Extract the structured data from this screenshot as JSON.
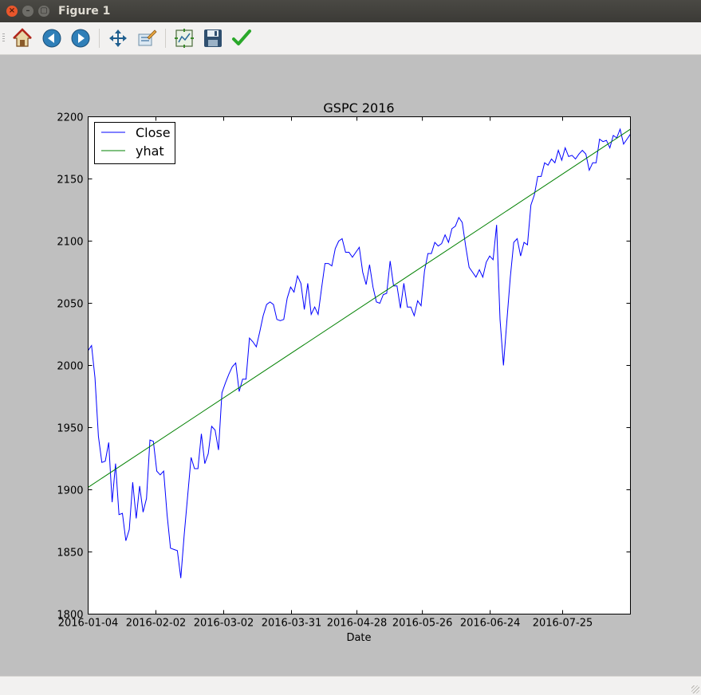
{
  "window": {
    "title": "Figure 1",
    "close_glyph": "×",
    "min_glyph": "–",
    "max_glyph": "▢"
  },
  "toolbar": {
    "items": [
      {
        "name": "home-icon"
      },
      {
        "name": "back-icon"
      },
      {
        "name": "forward-icon"
      },
      {
        "name": "pan-icon"
      },
      {
        "name": "zoom-icon"
      },
      {
        "name": "subplots-icon"
      },
      {
        "name": "save-icon"
      },
      {
        "name": "edit-axis-icon"
      }
    ]
  },
  "chart_data": {
    "type": "line",
    "title": "GSPC 2016",
    "xlabel": "Date",
    "ylabel": "",
    "ylim": [
      1800,
      2200
    ],
    "yticks": [
      1800,
      1850,
      1900,
      1950,
      2000,
      2050,
      2100,
      2150,
      2200
    ],
    "xticks": [
      "2016-01-04",
      "2016-02-02",
      "2016-03-02",
      "2016-03-31",
      "2016-04-28",
      "2016-05-26",
      "2016-06-24",
      "2016-07-25"
    ],
    "legend_position": "upper-left",
    "colors": {
      "Close": "#0000ff",
      "yhat": "#008000"
    },
    "series": [
      {
        "name": "Close",
        "x_start": "2016-01-04",
        "x_end": "2016-08-23",
        "values": [
          2012,
          2016,
          1990,
          1943,
          1922,
          1923,
          1938,
          1890,
          1921,
          1880,
          1881,
          1859,
          1868,
          1906,
          1877,
          1903,
          1882,
          1893,
          1940,
          1939,
          1915,
          1912,
          1915,
          1880,
          1853,
          1852,
          1851,
          1829,
          1864,
          1895,
          1926,
          1917,
          1917,
          1945,
          1921,
          1929,
          1951,
          1948,
          1932,
          1978,
          1986,
          1993,
          1999,
          2002,
          1979,
          1989,
          1989,
          2022,
          2019,
          2015,
          2027,
          2040,
          2049,
          2051,
          2049,
          2037,
          2036,
          2037,
          2054,
          2063,
          2059,
          2072,
          2066,
          2045,
          2066,
          2041,
          2047,
          2041,
          2062,
          2082,
          2082,
          2080,
          2094,
          2100,
          2102,
          2091,
          2091,
          2087,
          2091,
          2095,
          2075,
          2065,
          2081,
          2063,
          2051,
          2050,
          2057,
          2058,
          2084,
          2064,
          2064,
          2046,
          2066,
          2047,
          2047,
          2040,
          2052,
          2048,
          2076,
          2090,
          2090,
          2099,
          2096,
          2098,
          2105,
          2099,
          2110,
          2112,
          2119,
          2115,
          2096,
          2079,
          2075,
          2071,
          2077,
          2071,
          2083,
          2088,
          2085,
          2113,
          2037,
          2000,
          2036,
          2071,
          2099,
          2102,
          2088,
          2099,
          2097,
          2129,
          2137,
          2152,
          2152,
          2163,
          2161,
          2166,
          2163,
          2173,
          2165,
          2175,
          2168,
          2169,
          2166,
          2170,
          2173,
          2170,
          2157,
          2163,
          2163,
          2182,
          2180,
          2181,
          2175,
          2185,
          2183,
          2190,
          2178,
          2182,
          2186
        ]
      },
      {
        "name": "yhat",
        "x_start": "2016-01-04",
        "x_end": "2016-08-23",
        "values": [
          1902,
          2190
        ]
      }
    ]
  }
}
